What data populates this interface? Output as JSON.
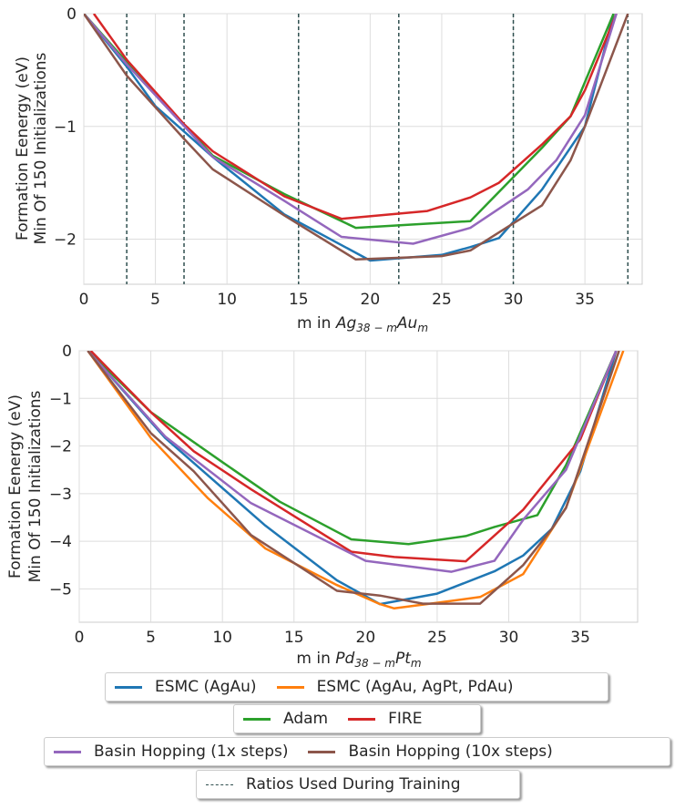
{
  "colors": {
    "esmc_agau": "#1f77b4",
    "esmc_multi": "#ff7f0e",
    "adam": "#2ca02c",
    "fire": "#d62728",
    "bh1": "#9467bd",
    "bh10": "#8c564b",
    "training": "#2f4f4f",
    "grid": "#dddddd"
  },
  "legend": {
    "esmc_agau": "ESMC (AgAu)",
    "esmc_multi": "ESMC (AgAu, AgPt, PdAu)",
    "adam": "Adam",
    "fire": "FIRE",
    "bh1": "Basin Hopping (1x steps)",
    "bh10": "Basin Hopping (10x steps)",
    "training": "Ratios Used During Training"
  },
  "chart_data": [
    {
      "type": "line",
      "ylabel_line1": "Formation Eenergy (eV)",
      "ylabel_line2": "Min Of 150 Initializations",
      "xlabel_prefix": "m in ",
      "xlabel_formula": {
        "a": "Ag",
        "a_sub": "38 − m",
        "b": "Au",
        "b_sub": "m"
      },
      "xlim": [
        0,
        39
      ],
      "ylim": [
        -2.4,
        0
      ],
      "xticks": [
        0,
        5,
        10,
        15,
        20,
        25,
        30,
        35
      ],
      "yticks": [
        0,
        -1,
        -2
      ],
      "grid": true,
      "training_ratios": [
        3,
        7,
        15,
        22,
        30,
        38
      ],
      "series": [
        {
          "key": "esmc_agau",
          "x": [
            0,
            3,
            5,
            9,
            14,
            20,
            25,
            27,
            29,
            32,
            35,
            37
          ],
          "y": [
            0,
            -0.47,
            -0.82,
            -1.27,
            -1.78,
            -2.19,
            -2.14,
            -2.07,
            -1.99,
            -1.56,
            -1.0,
            0
          ]
        },
        {
          "key": "adam",
          "x": [
            0,
            3,
            9,
            14,
            19,
            27,
            32,
            34,
            37
          ],
          "y": [
            0,
            -0.43,
            -1.26,
            -1.6,
            -1.9,
            -1.84,
            -1.19,
            -0.91,
            0
          ]
        },
        {
          "key": "fire",
          "x": [
            0.7,
            3,
            7,
            9,
            14,
            18,
            24,
            27,
            29,
            32,
            34,
            35,
            37.2
          ],
          "y": [
            0,
            -0.41,
            -0.98,
            -1.22,
            -1.62,
            -1.82,
            -1.75,
            -1.63,
            -1.5,
            -1.16,
            -0.91,
            -0.68,
            0
          ]
        },
        {
          "key": "bh1",
          "x": [
            0,
            3,
            9,
            14,
            18,
            23,
            27,
            31,
            33,
            35,
            37.2
          ],
          "y": [
            0,
            -0.45,
            -1.27,
            -1.66,
            -1.98,
            -2.04,
            -1.9,
            -1.56,
            -1.3,
            -0.9,
            0
          ]
        },
        {
          "key": "bh10",
          "x": [
            0,
            3,
            7,
            9,
            14,
            19,
            25,
            27,
            30,
            32,
            34,
            35,
            38
          ],
          "y": [
            0,
            -0.55,
            -1.11,
            -1.38,
            -1.79,
            -2.18,
            -2.15,
            -2.1,
            -1.86,
            -1.7,
            -1.3,
            -1.0,
            0
          ]
        }
      ]
    },
    {
      "type": "line",
      "ylabel_line1": "Formation Eenergy (eV)",
      "ylabel_line2": "Min Of 150 Initializations",
      "xlabel_prefix": "m in ",
      "xlabel_formula": {
        "a": "Pd",
        "a_sub": "38 − m",
        "b": "Pt",
        "b_sub": "m"
      },
      "xlim": [
        0,
        39
      ],
      "ylim": [
        -5.7,
        0
      ],
      "xticks": [
        0,
        5,
        10,
        15,
        20,
        25,
        30,
        35
      ],
      "yticks": [
        0,
        -1,
        -2,
        -3,
        -4,
        -5
      ],
      "grid": true,
      "series": [
        {
          "key": "esmc_agau",
          "x": [
            0.6,
            6,
            13,
            18,
            21,
            25,
            29,
            31,
            33,
            35,
            37.5
          ],
          "y": [
            0,
            -1.83,
            -3.67,
            -4.82,
            -5.32,
            -5.1,
            -4.63,
            -4.3,
            -3.74,
            -2.53,
            0
          ]
        },
        {
          "key": "esmc_multi",
          "x": [
            0.6,
            5,
            9,
            13,
            18,
            21,
            22,
            25,
            28,
            31,
            34,
            38
          ],
          "y": [
            0,
            -1.83,
            -3.1,
            -4.15,
            -4.92,
            -5.32,
            -5.41,
            -5.29,
            -5.17,
            -4.69,
            -3.29,
            0
          ]
        },
        {
          "key": "adam",
          "x": [
            0.6,
            5,
            10,
            14,
            19,
            23,
            27,
            29,
            32,
            34,
            37.5
          ],
          "y": [
            0,
            -1.29,
            -2.34,
            -3.17,
            -3.96,
            -4.06,
            -3.89,
            -3.7,
            -3.45,
            -2.4,
            0
          ]
        },
        {
          "key": "fire",
          "x": [
            0.8,
            5,
            8,
            12,
            19,
            22,
            27,
            31,
            35,
            37.5
          ],
          "y": [
            0,
            -1.29,
            -2.11,
            -2.91,
            -4.22,
            -4.33,
            -4.42,
            -3.34,
            -1.86,
            0
          ]
        },
        {
          "key": "bh1",
          "x": [
            0.6,
            6,
            12,
            20,
            26,
            29,
            31,
            34,
            37.5
          ],
          "y": [
            0,
            -1.8,
            -3.2,
            -4.41,
            -4.64,
            -4.41,
            -3.55,
            -2.5,
            0
          ]
        },
        {
          "key": "bh10",
          "x": [
            0.6,
            5,
            8,
            12,
            18,
            21,
            24,
            28,
            31,
            33,
            34,
            37.7
          ],
          "y": [
            0,
            -1.73,
            -2.53,
            -3.87,
            -5.04,
            -5.14,
            -5.31,
            -5.31,
            -4.5,
            -3.74,
            -3.3,
            0
          ]
        }
      ]
    }
  ]
}
